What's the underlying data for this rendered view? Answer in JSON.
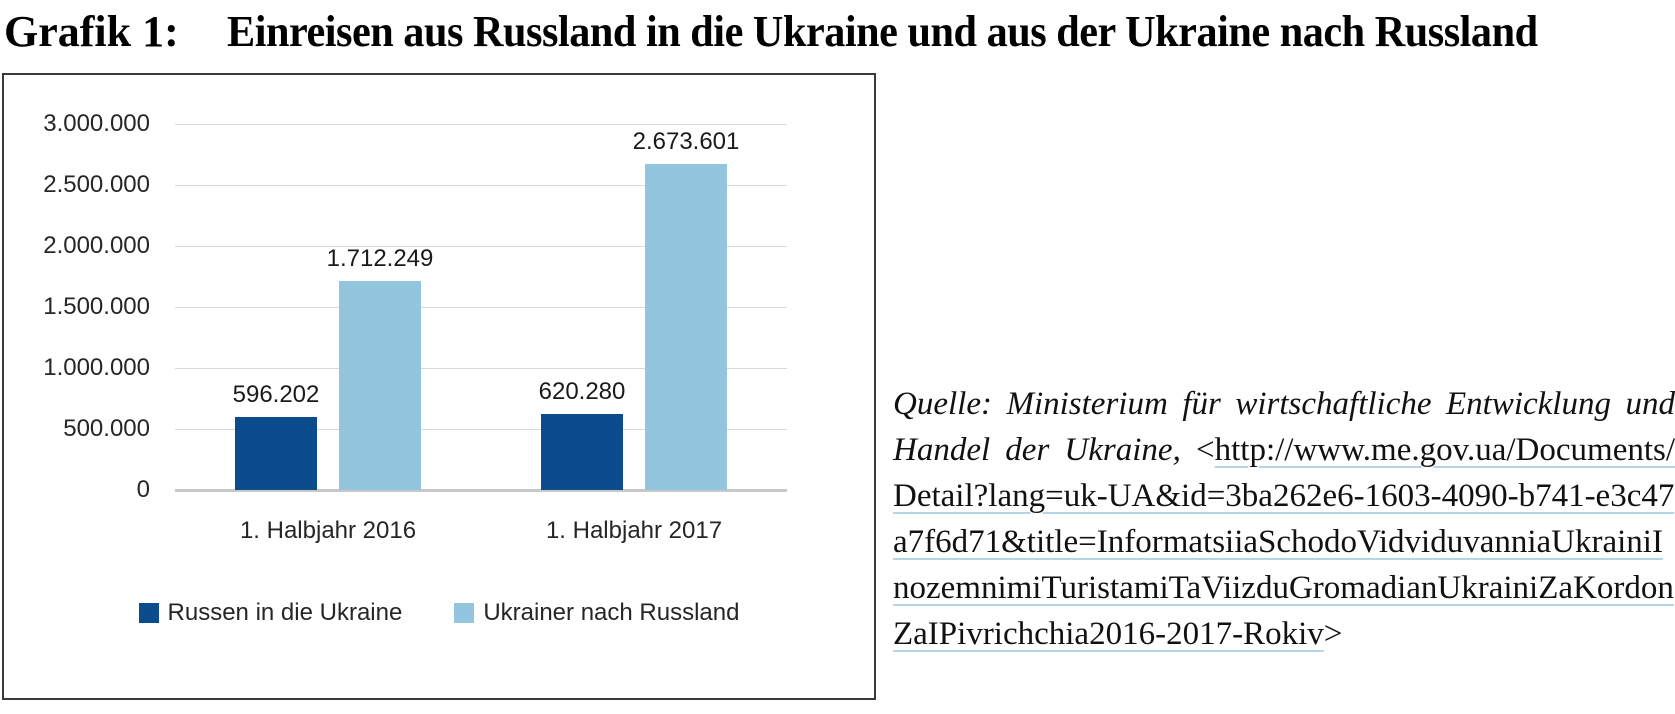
{
  "title": {
    "label": "Grafik 1:",
    "text": "Einreisen aus Russland in die Ukraine und aus der Ukraine nach Russland"
  },
  "chart_data": {
    "type": "bar",
    "title": "",
    "categories": [
      "1. Halbjahr 2016",
      "1. Halbjahr 2017"
    ],
    "series": [
      {
        "name": "Russen in die Ukraine",
        "color": "#0b4d8c",
        "values": [
          596202,
          620280
        ],
        "data_labels": [
          "596.202",
          "620.280"
        ]
      },
      {
        "name": "Ukrainer nach Russland",
        "color": "#93c6de",
        "values": [
          1712249,
          2673601
        ],
        "data_labels": [
          "1.712.249",
          "2.673.601"
        ]
      }
    ],
    "y_ticks": [
      {
        "label": "3.000.000",
        "value": 3000000
      },
      {
        "label": "2.500.000",
        "value": 2500000
      },
      {
        "label": "2.000.000",
        "value": 2000000
      },
      {
        "label": "1.500.000",
        "value": 1500000
      },
      {
        "label": "1.000.000",
        "value": 1000000
      },
      {
        "label": "500.000",
        "value": 500000
      },
      {
        "label": "0",
        "value": 0
      }
    ],
    "ylim": [
      0,
      3000000
    ],
    "xlabel": "",
    "ylabel": "",
    "grid": true,
    "legend_position": "bottom"
  },
  "source": {
    "prefix": "Quelle: Ministerium für wirtschaftliche Entwicklung und Handel der Ukraine,",
    "url_open": "<",
    "url": "http://www.me.gov.ua/Documents/Detail?lang=uk-UA&id=3ba262e6-1603-4090-b741-e3c47a7f6d71&title=InformatsiiaSchodoVidviduvanniaUkrainiInozemnimiTuristamiTaViizduGromadianUkrainiZaKordonZaIPivrichchia2016-2017-Rokiv",
    "url_close": ">"
  }
}
